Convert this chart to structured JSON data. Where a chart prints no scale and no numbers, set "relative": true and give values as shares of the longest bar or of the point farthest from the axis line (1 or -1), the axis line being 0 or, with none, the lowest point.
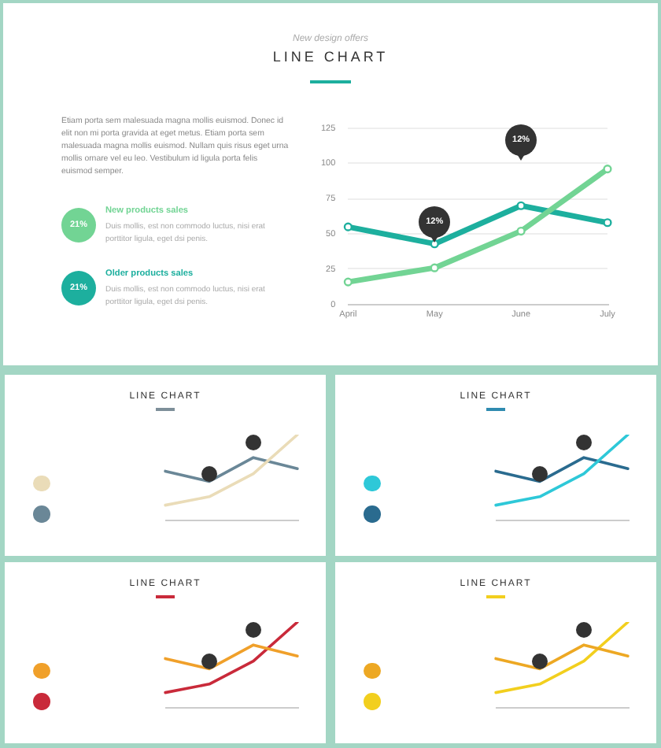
{
  "chart_data": [
    {
      "type": "line",
      "title": "LINE CHART",
      "subtitle": "New design offers",
      "categories": [
        "April",
        "May",
        "June",
        "July"
      ],
      "ylim": [
        0,
        125
      ],
      "yticks": [
        0,
        25,
        50,
        75,
        100,
        125
      ],
      "grid": "y",
      "marker": "circle",
      "legend": "left",
      "series": [
        {
          "name": "New products sales",
          "color": "#72d494",
          "values": [
            16,
            26,
            52,
            96
          ]
        },
        {
          "name": "Older products sales",
          "color": "#1daf9e",
          "values": [
            55,
            43,
            70,
            58
          ]
        }
      ],
      "annotations": [
        "Etiam porta sem malesuada magna mollis euismod. Donec id elit non mi porta gravida at eget metus. Etiam porta sem malesuada magna mollis euismod. Nullam quis risus eget urna mollis ornare vel eu leo. Vestibulum id ligula porta felis euismod semper.",
        "21%",
        "Duis mollis, est non commodo luctus, nisi erat porttitor ligula, eget dsi penis.",
        "21%",
        "Duis mollis, est non commodo luctus, nisi erat porttitor ligula, eget dsi penis.",
        {
          "text": "12%",
          "x": "May",
          "y": 43
        },
        "12%"
      ]
    },
    {
      "type": "line",
      "title": "LINE CHART",
      "categories": [
        null,
        null,
        null,
        null
      ],
      "relative": true,
      "series": [
        {
          "color": "#eadcb8",
          "values": [
            0.17,
            0.27,
            0.54,
            1
          ]
        },
        {
          "color": "#6a8797",
          "values": [
            0.57,
            0.45,
            0.73,
            0.6
          ]
        }
      ]
    },
    {
      "type": "line",
      "title": "LINE CHART",
      "categories": [
        null,
        null,
        null,
        null
      ],
      "relative": true,
      "series": [
        {
          "color": "#2ec8d8",
          "values": [
            0.17,
            0.27,
            0.54,
            1
          ]
        },
        {
          "color": "#2a6b8f",
          "values": [
            0.57,
            0.45,
            0.73,
            0.6
          ]
        }
      ]
    },
    {
      "type": "line",
      "title": "LINE CHART",
      "categories": [
        null,
        null,
        null,
        null
      ],
      "relative": true,
      "series": [
        {
          "color": "#f0a02a",
          "values": [
            0.57,
            0.45,
            0.73,
            0.6
          ]
        },
        {
          "color": "#c92a3a",
          "values": [
            0.17,
            0.27,
            0.54,
            1
          ]
        }
      ]
    },
    {
      "type": "line",
      "title": "LINE CHART",
      "categories": [
        null,
        null,
        null,
        null
      ],
      "relative": true,
      "series": [
        {
          "color": "#eda823",
          "values": [
            0.57,
            0.45,
            0.73,
            0.6
          ]
        },
        {
          "color": "#f2cf1e",
          "values": [
            0.17,
            0.27,
            0.54,
            1
          ]
        }
      ]
    }
  ]
}
